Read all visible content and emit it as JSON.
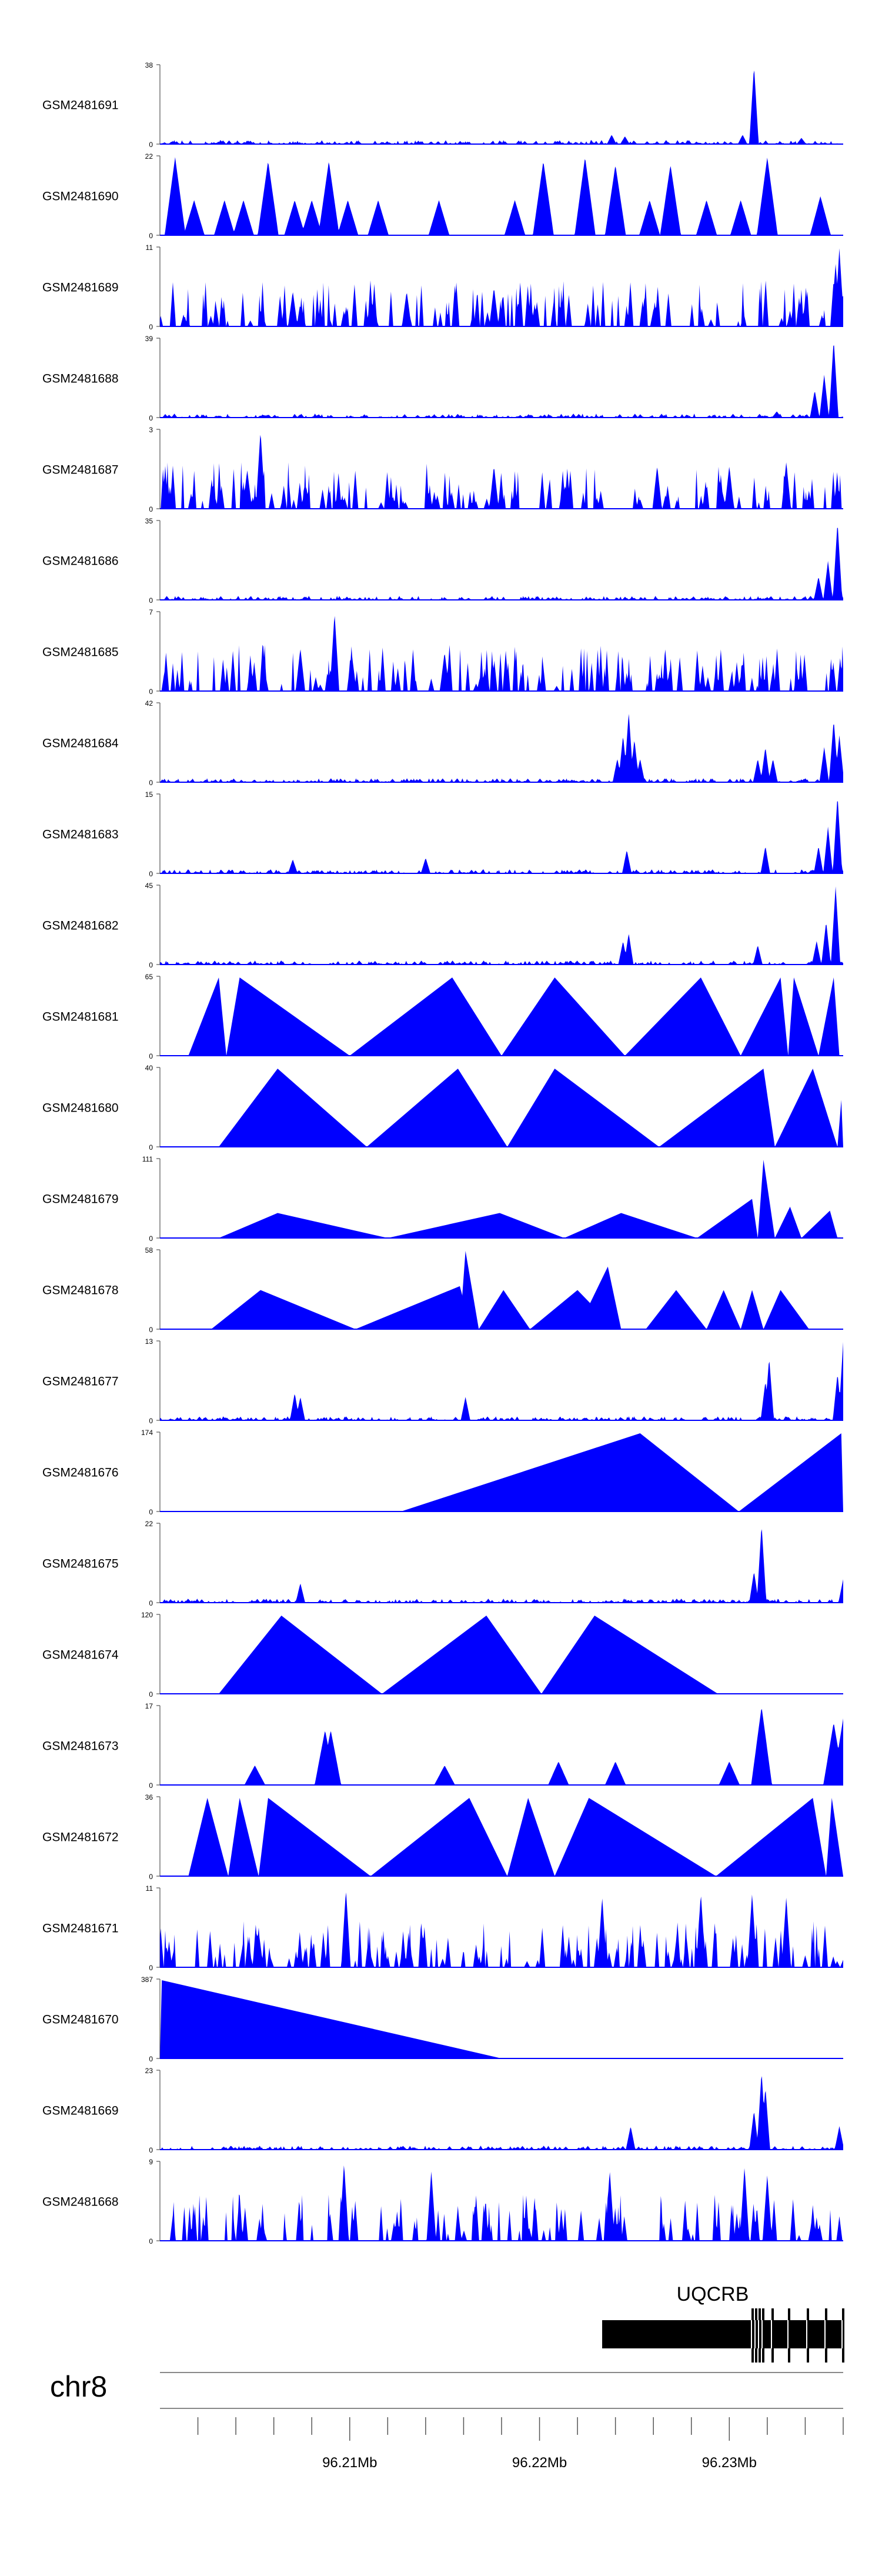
{
  "colors": {
    "track_fill": "#0000ff",
    "axis": "#555555",
    "text": "#000000",
    "gene": "#000000",
    "ideogram": "#888888"
  },
  "chart_data": {
    "type": "area",
    "title": "",
    "chromosome": "chr8",
    "gene": {
      "name": "UQCRB",
      "start": 96.2233,
      "end": 96.236
    },
    "x_range": [
      96.2,
      96.236
    ],
    "x_unit": "Mb",
    "x_ticks": [
      "96.21Mb",
      "96.22Mb",
      "96.23Mb"
    ],
    "tracks": [
      {
        "label": "GSM2481691",
        "ymax": 38,
        "ymax_label": "38",
        "style": "dense",
        "peaks": [
          [
            96.2238,
            0.12
          ],
          [
            96.2245,
            0.1
          ],
          [
            96.2313,
            1.0
          ],
          [
            96.2307,
            0.12
          ],
          [
            96.2338,
            0.08
          ]
        ]
      },
      {
        "label": "GSM2481690",
        "ymax": 22,
        "ymax_label": "22",
        "style": "sparse",
        "peaks": [
          [
            96.2008,
            1.0
          ],
          [
            96.2018,
            0.45
          ],
          [
            96.2034,
            0.45
          ],
          [
            96.2044,
            0.45
          ],
          [
            96.2057,
            0.95
          ],
          [
            96.2071,
            0.45
          ],
          [
            96.208,
            0.45
          ],
          [
            96.2089,
            0.95
          ],
          [
            96.2099,
            0.45
          ],
          [
            96.2115,
            0.45
          ],
          [
            96.2147,
            0.45
          ],
          [
            96.2187,
            0.45
          ],
          [
            96.2202,
            0.95
          ],
          [
            96.2224,
            1.0
          ],
          [
            96.224,
            0.9
          ],
          [
            96.2258,
            0.45
          ],
          [
            96.2269,
            0.9
          ],
          [
            96.2288,
            0.45
          ],
          [
            96.2306,
            0.45
          ],
          [
            96.232,
            1.0
          ],
          [
            96.2348,
            0.5
          ]
        ]
      },
      {
        "label": "GSM2481689",
        "ymax": 11,
        "ymax_label": "11",
        "style": "noise",
        "peaks": [
          [
            96.2358,
            1.0
          ],
          [
            96.2356,
            0.8
          ],
          [
            96.2176,
            0.5
          ],
          [
            96.213,
            0.45
          ],
          [
            96.207,
            0.45
          ]
        ]
      },
      {
        "label": "GSM2481688",
        "ymax": 39,
        "ymax_label": "39",
        "style": "dense",
        "peaks": [
          [
            96.2355,
            1.0
          ],
          [
            96.235,
            0.55
          ],
          [
            96.2345,
            0.35
          ],
          [
            96.2325,
            0.08
          ]
        ]
      },
      {
        "label": "GSM2481687",
        "ymax": 3,
        "ymax_label": "3",
        "style": "noise",
        "peaks": [
          [
            96.2053,
            1.0
          ],
          [
            96.2046,
            0.5
          ],
          [
            96.2176,
            0.55
          ],
          [
            96.2262,
            0.55
          ],
          [
            96.233,
            0.6
          ],
          [
            96.23,
            0.55
          ]
        ]
      },
      {
        "label": "GSM2481686",
        "ymax": 35,
        "ymax_label": "35",
        "style": "dense",
        "peaks": [
          [
            96.2357,
            1.0
          ],
          [
            96.2352,
            0.5
          ],
          [
            96.2347,
            0.3
          ]
        ]
      },
      {
        "label": "GSM2481685",
        "ymax": 7,
        "ymax_label": "7",
        "style": "noise",
        "peaks": [
          [
            96.2092,
            1.0
          ],
          [
            96.2101,
            0.5
          ],
          [
            96.2074,
            0.55
          ],
          [
            96.215,
            0.5
          ]
        ]
      },
      {
        "label": "GSM2481684",
        "ymax": 42,
        "ymax_label": "42",
        "style": "dense",
        "peaks": [
          [
            96.2247,
            0.9
          ],
          [
            96.2244,
            0.6
          ],
          [
            96.225,
            0.55
          ],
          [
            96.2241,
            0.3
          ],
          [
            96.2253,
            0.3
          ],
          [
            96.2319,
            0.45
          ],
          [
            96.2315,
            0.3
          ],
          [
            96.2323,
            0.3
          ],
          [
            96.2355,
            0.8
          ],
          [
            96.235,
            0.45
          ],
          [
            96.2358,
            0.6
          ]
        ]
      },
      {
        "label": "GSM2481683",
        "ymax": 15,
        "ymax_label": "15",
        "style": "dense",
        "peaks": [
          [
            96.2357,
            1.0
          ],
          [
            96.2352,
            0.6
          ],
          [
            96.2347,
            0.35
          ],
          [
            96.2246,
            0.3
          ],
          [
            96.2319,
            0.35
          ],
          [
            96.214,
            0.2
          ],
          [
            96.207,
            0.18
          ]
        ]
      },
      {
        "label": "GSM2481682",
        "ymax": 45,
        "ymax_label": "45",
        "style": "dense",
        "peaks": [
          [
            96.2356,
            1.0
          ],
          [
            96.2351,
            0.55
          ],
          [
            96.2346,
            0.3
          ],
          [
            96.2247,
            0.4
          ],
          [
            96.2244,
            0.3
          ],
          [
            96.2315,
            0.25
          ]
        ]
      },
      {
        "label": "GSM2481681",
        "ymax": 65,
        "ymax_label": "65",
        "style": "triangles",
        "peaks": [
          [
            96.2015,
            96.2031,
            96.2035,
            1.0
          ],
          [
            96.2035,
            96.2042,
            96.21,
            1.0
          ],
          [
            96.21,
            96.2154,
            96.218,
            1.0
          ],
          [
            96.218,
            96.2208,
            96.2245,
            1.0
          ],
          [
            96.2245,
            96.2285,
            96.2306,
            1.0
          ],
          [
            96.2306,
            96.2327,
            96.2331,
            1.0
          ],
          [
            96.2331,
            96.2334,
            96.2347,
            1.0
          ],
          [
            96.2347,
            96.2355,
            96.2358,
            1.0
          ]
        ]
      },
      {
        "label": "GSM2481680",
        "ymax": 40,
        "ymax_label": "40",
        "style": "triangles",
        "peaks": [
          [
            96.2031,
            96.2062,
            96.2109,
            1.0
          ],
          [
            96.2109,
            96.2157,
            96.2183,
            1.0
          ],
          [
            96.2183,
            96.2208,
            96.2263,
            1.0
          ],
          [
            96.2263,
            96.2318,
            96.2324,
            1.0
          ],
          [
            96.2324,
            96.2344,
            96.2357,
            1.0
          ],
          [
            96.2357,
            96.2359,
            96.236,
            0.6
          ]
        ]
      },
      {
        "label": "GSM2481679",
        "ymax": 111,
        "ymax_label": "111",
        "style": "triangles",
        "peaks": [
          [
            96.2031,
            96.2062,
            96.212,
            0.32
          ],
          [
            96.212,
            96.2179,
            96.2213,
            0.32
          ],
          [
            96.2213,
            96.2243,
            96.2283,
            0.32
          ],
          [
            96.2283,
            96.2312,
            96.2315,
            0.5
          ],
          [
            96.2315,
            96.2318,
            96.2324,
            1.0
          ],
          [
            96.2324,
            96.2332,
            96.2338,
            0.4
          ],
          [
            96.2338,
            96.2353,
            96.2357,
            0.35
          ]
        ]
      },
      {
        "label": "GSM2481678",
        "ymax": 58,
        "ymax_label": "58",
        "style": "triangles",
        "peaks": [
          [
            96.2027,
            96.2053,
            96.2103,
            0.5
          ],
          [
            96.2103,
            96.2158,
            96.2164,
            0.55
          ],
          [
            96.2158,
            96.2161,
            96.2168,
            1.0
          ],
          [
            96.2168,
            96.2181,
            96.2195,
            0.5
          ],
          [
            96.2195,
            96.222,
            96.224,
            0.5
          ],
          [
            96.222,
            96.2236,
            96.2243,
            0.8
          ],
          [
            96.2256,
            96.2272,
            96.2288,
            0.5
          ],
          [
            96.2288,
            96.2297,
            96.2306,
            0.5
          ],
          [
            96.2306,
            96.2312,
            96.2318,
            0.5
          ],
          [
            96.2318,
            96.2327,
            96.2342,
            0.5
          ]
        ]
      },
      {
        "label": "GSM2481677",
        "ymax": 13,
        "ymax_label": "13",
        "style": "dense",
        "peaks": [
          [
            96.236,
            1.0
          ],
          [
            96.2357,
            0.6
          ],
          [
            96.2321,
            0.8
          ],
          [
            96.2319,
            0.5
          ],
          [
            96.2071,
            0.35
          ],
          [
            96.2074,
            0.3
          ],
          [
            96.2161,
            0.3
          ]
        ]
      },
      {
        "label": "GSM2481676",
        "ymax": 174,
        "ymax_label": "174",
        "style": "triangles",
        "peaks": [
          [
            96.2127,
            96.2253,
            96.2305,
            1.0
          ],
          [
            96.2305,
            96.2359,
            96.236,
            1.0
          ]
        ]
      },
      {
        "label": "GSM2481675",
        "ymax": 22,
        "ymax_label": "22",
        "style": "dense",
        "peaks": [
          [
            96.2317,
            1.0
          ],
          [
            96.2313,
            0.4
          ],
          [
            96.236,
            0.3
          ],
          [
            96.2074,
            0.25
          ]
        ]
      },
      {
        "label": "GSM2481674",
        "ymax": 120,
        "ymax_label": "120",
        "style": "triangles",
        "peaks": [
          [
            96.2031,
            96.2064,
            96.2117,
            1.0
          ],
          [
            96.2117,
            96.2172,
            96.2201,
            1.0
          ],
          [
            96.2201,
            96.2229,
            96.2294,
            1.0
          ]
        ]
      },
      {
        "label": "GSM2481673",
        "ymax": 17,
        "ymax_label": "17",
        "style": "sparse",
        "peaks": [
          [
            96.2317,
            1.0
          ],
          [
            96.2087,
            0.7
          ],
          [
            96.209,
            0.7
          ],
          [
            96.2355,
            0.8
          ],
          [
            96.236,
            0.85
          ],
          [
            96.205,
            0.25
          ],
          [
            96.215,
            0.25
          ],
          [
            96.221,
            0.3
          ],
          [
            96.224,
            0.3
          ],
          [
            96.23,
            0.3
          ]
        ]
      },
      {
        "label": "GSM2481672",
        "ymax": 36,
        "ymax_label": "36",
        "style": "triangles",
        "peaks": [
          [
            96.2015,
            96.2025,
            96.2036,
            1.0
          ],
          [
            96.2036,
            96.2042,
            96.2052,
            1.0
          ],
          [
            96.2052,
            96.2057,
            96.2111,
            1.0
          ],
          [
            96.2111,
            96.2163,
            96.2183,
            1.0
          ],
          [
            96.2183,
            96.2194,
            96.2208,
            1.0
          ],
          [
            96.2208,
            96.2226,
            96.2293,
            1.0
          ],
          [
            96.2293,
            96.2344,
            96.2351,
            1.0
          ],
          [
            96.2351,
            96.2354,
            96.236,
            1.0
          ]
        ]
      },
      {
        "label": "GSM2481671",
        "ymax": 11,
        "ymax_label": "11",
        "style": "noise",
        "peaks": [
          [
            96.2098,
            1.0
          ],
          [
            96.2285,
            0.95
          ],
          [
            96.2312,
            0.95
          ],
          [
            96.233,
            0.9
          ],
          [
            96.2233,
            0.9
          ]
        ]
      },
      {
        "label": "GSM2481670",
        "ymax": 387,
        "ymax_label": "387",
        "style": "triangles",
        "peaks": [
          [
            96.2,
            96.2001,
            96.218,
            1.0
          ]
        ]
      },
      {
        "label": "GSM2481669",
        "ymax": 23,
        "ymax_label": "23",
        "style": "dense",
        "peaks": [
          [
            96.2317,
            1.0
          ],
          [
            96.2319,
            0.8
          ],
          [
            96.2313,
            0.5
          ],
          [
            96.2248,
            0.3
          ],
          [
            96.2358,
            0.3
          ]
        ]
      },
      {
        "label": "GSM2481668",
        "ymax": 9,
        "ymax_label": "9",
        "style": "noise",
        "peaks": [
          [
            96.2097,
            1.0
          ],
          [
            96.2143,
            0.9
          ],
          [
            96.2237,
            0.9
          ],
          [
            96.2308,
            0.95
          ],
          [
            96.232,
            0.85
          ]
        ]
      }
    ]
  }
}
